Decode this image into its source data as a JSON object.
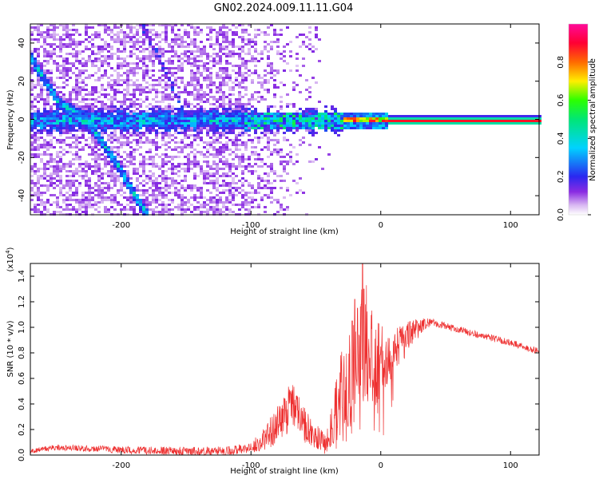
{
  "title": "GN02.2024.009.11.11.G04",
  "chart_data": [
    {
      "type": "heatmap",
      "xlabel": "Height of straight line (km)",
      "ylabel": "Frequency (Hz)",
      "xlim": [
        -270,
        122
      ],
      "ylim": [
        -50,
        50
      ],
      "x_ticks": [
        -200,
        -100,
        0,
        100
      ],
      "y_ticks": [
        -40,
        -20,
        0,
        20,
        40
      ],
      "colorbar": {
        "label": "Normalized spectral amplitude",
        "range": [
          0.0,
          1.0
        ],
        "ticks": [
          0.0,
          0.2,
          0.4,
          0.6,
          0.8
        ],
        "colormap": "rainbow (white-violet-blue-cyan-green-yellow-red-magenta)"
      },
      "features": [
        {
          "description": "narrow high-amplitude line at 0 Hz",
          "x_range": [
            -30,
            122
          ],
          "frequency": 0,
          "amplitude": 0.85
        },
        {
          "description": "broadened band near 0 Hz",
          "x_range": [
            -270,
            -30
          ],
          "frequency_spread": [
            -8,
            8
          ],
          "amplitude": 0.4
        },
        {
          "description": "diagonal streak",
          "points": [
            [
              -270,
              32
            ],
            [
              -250,
              10
            ],
            [
              -225,
              -2
            ],
            [
              -205,
              -22
            ],
            [
              -190,
              -40
            ],
            [
              -180,
              -50
            ]
          ],
          "amplitude": 0.35
        },
        {
          "description": "secondary diagonal streak",
          "points": [
            [
              -185,
              50
            ],
            [
              -170,
              30
            ],
            [
              -160,
              15
            ],
            [
              -150,
              0
            ]
          ],
          "amplitude": 0.15
        }
      ]
    },
    {
      "type": "line",
      "xlabel": "Height of straight line (km)",
      "ylabel": "SNR (10 * v/v)",
      "y_scale_label": "(x10",
      "y_scale_exp": "4",
      "y_scale_close": ")",
      "xlim": [
        -270,
        122
      ],
      "ylim": [
        0,
        1.5
      ],
      "x_ticks": [
        -200,
        -100,
        0,
        100
      ],
      "y_ticks": [
        "0.0",
        "0.2",
        "0.4",
        "0.6",
        "0.8",
        "1.0",
        "1.2",
        "1.4"
      ],
      "color": "#ee3030",
      "envelope": [
        {
          "x": -270,
          "y": 0.03
        },
        {
          "x": -250,
          "y": 0.06
        },
        {
          "x": -200,
          "y": 0.04
        },
        {
          "x": -150,
          "y": 0.03
        },
        {
          "x": -120,
          "y": 0.03
        },
        {
          "x": -100,
          "y": 0.06
        },
        {
          "x": -90,
          "y": 0.12
        },
        {
          "x": -75,
          "y": 0.3
        },
        {
          "x": -68,
          "y": 0.38
        },
        {
          "x": -60,
          "y": 0.25
        },
        {
          "x": -50,
          "y": 0.14
        },
        {
          "x": -42,
          "y": 0.1
        },
        {
          "x": -35,
          "y": 0.3
        },
        {
          "x": -30,
          "y": 0.45
        },
        {
          "x": -20,
          "y": 0.65
        },
        {
          "x": -16,
          "y": 0.8
        },
        {
          "x": -12,
          "y": 0.95
        },
        {
          "x": -5,
          "y": 0.72
        },
        {
          "x": 5,
          "y": 0.78
        },
        {
          "x": 15,
          "y": 0.85
        },
        {
          "x": 25,
          "y": 0.98
        },
        {
          "x": 40,
          "y": 1.04
        },
        {
          "x": 60,
          "y": 0.98
        },
        {
          "x": 80,
          "y": 0.93
        },
        {
          "x": 100,
          "y": 0.88
        },
        {
          "x": 122,
          "y": 0.81
        }
      ],
      "noise_amplitude": [
        {
          "x": -270,
          "a": 0.02
        },
        {
          "x": -100,
          "a": 0.04
        },
        {
          "x": -70,
          "a": 0.2
        },
        {
          "x": -50,
          "a": 0.1
        },
        {
          "x": -40,
          "a": 0.1
        },
        {
          "x": -30,
          "a": 0.4
        },
        {
          "x": -20,
          "a": 0.45
        },
        {
          "x": -12,
          "a": 0.5
        },
        {
          "x": 0,
          "a": 0.3
        },
        {
          "x": 20,
          "a": 0.12
        },
        {
          "x": 40,
          "a": 0.03
        },
        {
          "x": 122,
          "a": 0.025
        }
      ],
      "spikes": [
        {
          "x": -22,
          "y": 1.05
        },
        {
          "x": -20,
          "y": 1.22
        },
        {
          "x": -18,
          "y": 1.15
        },
        {
          "x": -15,
          "y": 1.18
        },
        {
          "x": -14,
          "y": 1.5
        },
        {
          "x": -13,
          "y": 1.3
        }
      ]
    }
  ]
}
